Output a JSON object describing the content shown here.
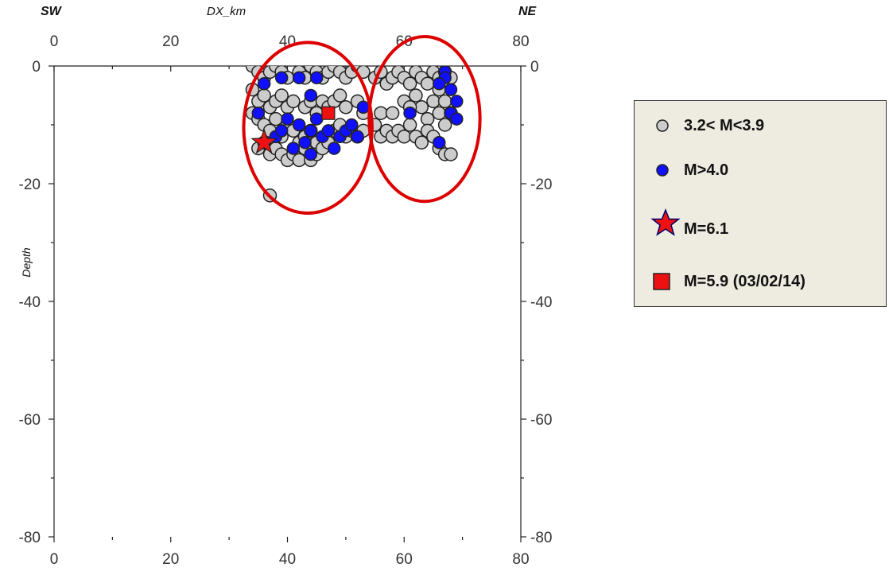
{
  "header": {
    "left": "SW",
    "center": "DX_km",
    "right": "NE"
  },
  "chart_data": {
    "type": "scatter",
    "title": "",
    "xlabel": "DX_km",
    "ylabel": "Depth",
    "xlim": [
      0,
      80
    ],
    "ylim": [
      -80,
      0
    ],
    "x_ticks": [
      "0",
      "20",
      "40",
      "60",
      "80"
    ],
    "y_ticks": [
      "0",
      "-20",
      "-40",
      "-60",
      "-80"
    ],
    "grid": false,
    "legend_position": "right",
    "colors": {
      "small": "#cccccc",
      "medium": "#1010ff",
      "mainshock": "#ee1111",
      "circle": "#dd0000"
    },
    "series": [
      {
        "name": "3.2< M<3.9",
        "marker": "circle",
        "color": "#cccccc",
        "points": [
          [
            34,
            0
          ],
          [
            35,
            -1
          ],
          [
            36,
            -2
          ],
          [
            37,
            -1
          ],
          [
            38,
            0
          ],
          [
            39,
            -1
          ],
          [
            40,
            -2
          ],
          [
            42,
            -1
          ],
          [
            43,
            -2
          ],
          [
            44,
            0
          ],
          [
            45,
            -1
          ],
          [
            46,
            -2
          ],
          [
            47,
            -1
          ],
          [
            48,
            0
          ],
          [
            49,
            -1
          ],
          [
            50,
            -2
          ],
          [
            51,
            -1
          ],
          [
            52,
            0
          ],
          [
            53,
            -1
          ],
          [
            34,
            -4
          ],
          [
            35,
            -6
          ],
          [
            36,
            -5
          ],
          [
            37,
            -7
          ],
          [
            38,
            -6
          ],
          [
            39,
            -5
          ],
          [
            40,
            -7
          ],
          [
            41,
            -6
          ],
          [
            43,
            -7
          ],
          [
            44,
            -6
          ],
          [
            45,
            -8
          ],
          [
            46,
            -6
          ],
          [
            47,
            -7
          ],
          [
            48,
            -6
          ],
          [
            49,
            -5
          ],
          [
            50,
            -7
          ],
          [
            52,
            -6
          ],
          [
            53,
            -8
          ],
          [
            34,
            -8
          ],
          [
            35,
            -9
          ],
          [
            36,
            -10
          ],
          [
            37,
            -11
          ],
          [
            38,
            -9
          ],
          [
            39,
            -12
          ],
          [
            40,
            -10
          ],
          [
            41,
            -11
          ],
          [
            42,
            -13
          ],
          [
            43,
            -12
          ],
          [
            44,
            -11
          ],
          [
            45,
            -13
          ],
          [
            47,
            -12
          ],
          [
            48,
            -11
          ],
          [
            49,
            -10
          ],
          [
            50,
            -12
          ],
          [
            51,
            -11
          ],
          [
            52,
            -12
          ],
          [
            53,
            -11
          ],
          [
            35,
            -14
          ],
          [
            36,
            -13
          ],
          [
            37,
            -15
          ],
          [
            38,
            -14
          ],
          [
            39,
            -15
          ],
          [
            40,
            -16
          ],
          [
            41,
            -15
          ],
          [
            42,
            -16
          ],
          [
            43,
            -14
          ],
          [
            44,
            -16
          ],
          [
            45,
            -15
          ],
          [
            46,
            -14
          ],
          [
            47,
            -13
          ],
          [
            37,
            -22
          ],
          [
            55,
            -2
          ],
          [
            56,
            -1
          ],
          [
            57,
            -3
          ],
          [
            58,
            -2
          ],
          [
            59,
            -1
          ],
          [
            60,
            -2
          ],
          [
            61,
            -3
          ],
          [
            62,
            -1
          ],
          [
            63,
            -2
          ],
          [
            64,
            -3
          ],
          [
            65,
            -1
          ],
          [
            66,
            -2
          ],
          [
            67,
            -1
          ],
          [
            68,
            -2
          ],
          [
            55,
            -10
          ],
          [
            56,
            -12
          ],
          [
            57,
            -11
          ],
          [
            58,
            -12
          ],
          [
            59,
            -11
          ],
          [
            60,
            -12
          ],
          [
            61,
            -10
          ],
          [
            62,
            -5
          ],
          [
            63,
            -7
          ],
          [
            64,
            -9
          ],
          [
            65,
            -6
          ],
          [
            66,
            -8
          ],
          [
            67,
            -10
          ],
          [
            62,
            -12
          ],
          [
            63,
            -13
          ],
          [
            64,
            -11
          ],
          [
            65,
            -12
          ],
          [
            66,
            -14
          ],
          [
            67,
            -15
          ],
          [
            68,
            -15
          ],
          [
            60,
            -6
          ],
          [
            61,
            -7
          ],
          [
            66,
            -4
          ],
          [
            67,
            -6
          ],
          [
            68,
            -8
          ],
          [
            56,
            -8
          ],
          [
            58,
            -8
          ]
        ]
      },
      {
        "name": "M>4.0",
        "marker": "circle",
        "color": "#1010ff",
        "points": [
          [
            36,
            -3
          ],
          [
            39,
            -2
          ],
          [
            42,
            -2
          ],
          [
            45,
            -2
          ],
          [
            44,
            -5
          ],
          [
            40,
            -9
          ],
          [
            35,
            -8
          ],
          [
            38,
            -12
          ],
          [
            39,
            -11
          ],
          [
            42,
            -10
          ],
          [
            43,
            -13
          ],
          [
            44,
            -11
          ],
          [
            45,
            -9
          ],
          [
            46,
            -12
          ],
          [
            47,
            -11
          ],
          [
            48,
            -14
          ],
          [
            49,
            -12
          ],
          [
            50,
            -11
          ],
          [
            51,
            -10
          ],
          [
            52,
            -12
          ],
          [
            53,
            -7
          ],
          [
            44,
            -15
          ],
          [
            41,
            -14
          ],
          [
            67,
            -1
          ],
          [
            68,
            -4
          ],
          [
            69,
            -6
          ],
          [
            67,
            -2
          ],
          [
            66,
            -3
          ],
          [
            68,
            -8
          ],
          [
            69,
            -9
          ],
          [
            66,
            -13
          ],
          [
            61,
            -8
          ]
        ]
      },
      {
        "name": "M=6.1",
        "marker": "star",
        "color": "#ee1111",
        "points": [
          [
            36,
            -13
          ]
        ]
      },
      {
        "name": "M=5.9 (03/02/14)",
        "marker": "square",
        "color": "#ee1111",
        "points": [
          [
            47,
            -8
          ]
        ]
      }
    ],
    "annotations": [
      {
        "type": "ellipse",
        "cx": 43.5,
        "cy": -10.5,
        "rx": 11,
        "ry": 14.5
      },
      {
        "type": "ellipse",
        "cx": 63.5,
        "cy": -9,
        "rx": 9.5,
        "ry": 14
      }
    ]
  },
  "legend": {
    "items": [
      {
        "label": "3.2< M<3.9",
        "symbol": "circle-gray"
      },
      {
        "label": "M>4.0",
        "symbol": "circle-blue"
      },
      {
        "label": "M=6.1",
        "symbol": "star-red"
      },
      {
        "label": "M=5.9 (03/02/14)",
        "symbol": "square-red"
      }
    ]
  }
}
